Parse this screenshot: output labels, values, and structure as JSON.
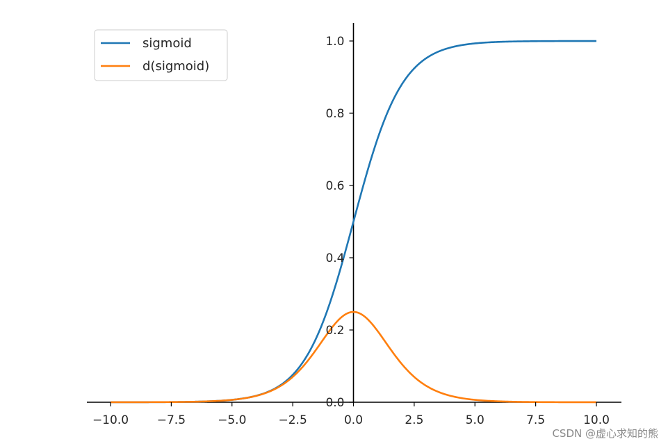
{
  "chart_data": {
    "type": "line",
    "x_range": [
      -10,
      10
    ],
    "xlim": [
      -11,
      11
    ],
    "ylim": [
      0,
      1.05
    ],
    "x_ticks": [
      -10.0,
      -7.5,
      -5.0,
      -2.5,
      0.0,
      2.5,
      5.0,
      7.5,
      10.0
    ],
    "x_tick_labels": [
      "−10.0",
      "−7.5",
      "−5.0",
      "−2.5",
      "0.0",
      "2.5",
      "5.0",
      "7.5",
      "10.0"
    ],
    "y_ticks": [
      0.0,
      0.2,
      0.4,
      0.6,
      0.8,
      1.0
    ],
    "y_tick_labels": [
      "0.0",
      "0.2",
      "0.4",
      "0.6",
      "0.8",
      "1.0"
    ],
    "spines": "center",
    "grid": false,
    "legend_position": "top-left",
    "series": [
      {
        "name": "sigmoid",
        "color": "#1f77b4",
        "x": [
          -10,
          -7.5,
          -5,
          -2.5,
          0,
          2.5,
          5,
          7.5,
          10
        ],
        "y": [
          0.0,
          0.0006,
          0.0067,
          0.0759,
          0.5,
          0.9241,
          0.9933,
          0.9994,
          1.0
        ]
      },
      {
        "name": "d(sigmoid)",
        "color": "#ff7f0e",
        "x": [
          -10,
          -7.5,
          -5,
          -2.5,
          0,
          2.5,
          5,
          7.5,
          10
        ],
        "y": [
          0.0,
          0.0006,
          0.0066,
          0.0701,
          0.25,
          0.0701,
          0.0066,
          0.0006,
          0.0
        ]
      }
    ]
  },
  "watermark": "CSDN @虚心求知的熊"
}
